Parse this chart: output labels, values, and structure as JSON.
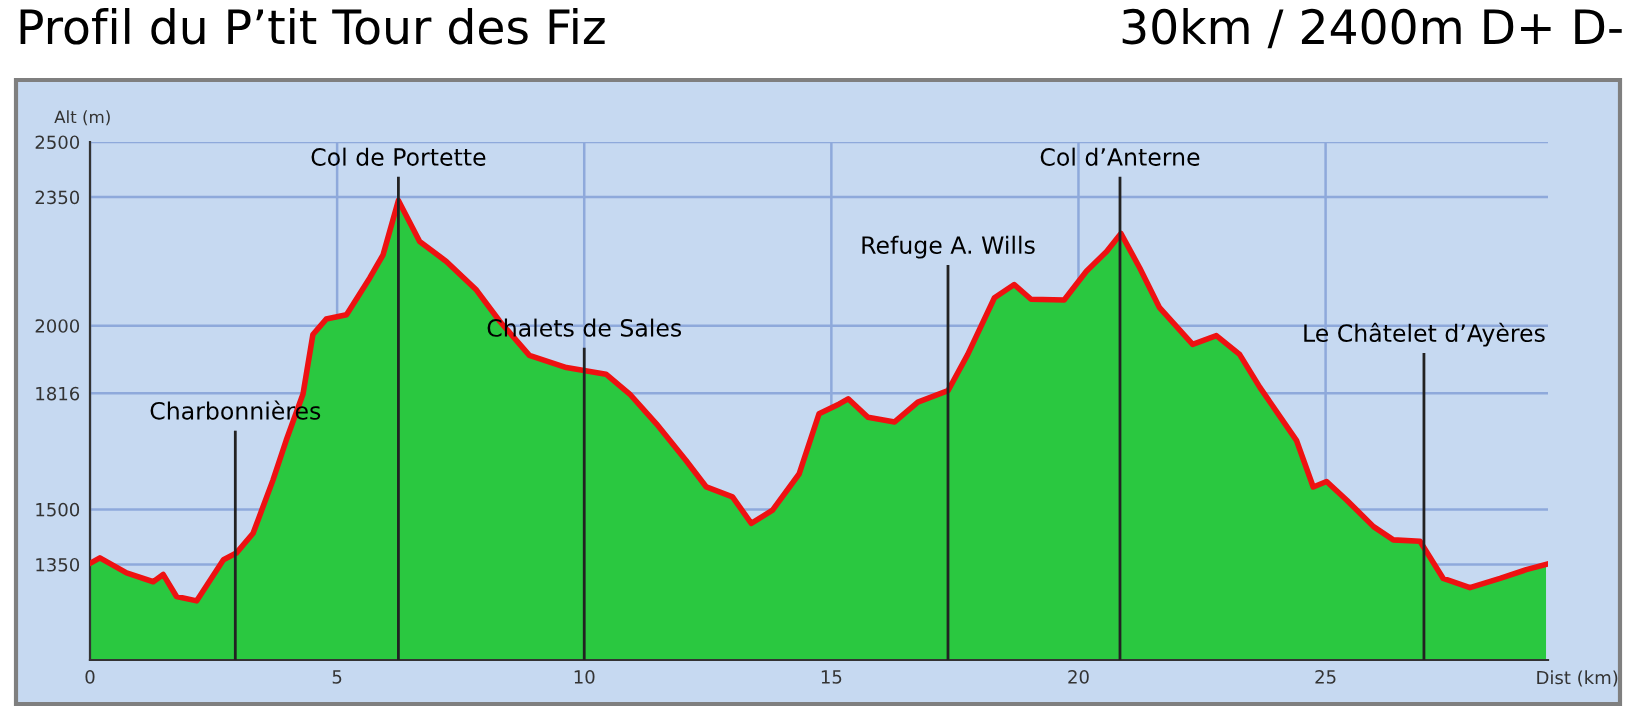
{
  "chart_data": {
    "type": "area",
    "title": "Profil du P’tit Tour des Fiz",
    "subtitle": "30km / 2400m D+ D-",
    "xlabel": "Dist (km)",
    "ylabel": "Alt (m)",
    "x": [
      0,
      0.2,
      0.74,
      1.28,
      1.48,
      1.75,
      2.16,
      2.7,
      2.96,
      3.3,
      3.7,
      3.97,
      4.31,
      4.51,
      4.78,
      5.19,
      5.66,
      5.93,
      6.24,
      6.67,
      7.21,
      7.82,
      8.29,
      8.89,
      9.64,
      10.44,
      10.92,
      11.46,
      12.06,
      12.47,
      13.0,
      13.38,
      13.81,
      14.35,
      14.75,
      15.16,
      15.34,
      15.74,
      16.28,
      16.75,
      17.36,
      17.76,
      18.3,
      18.7,
      19.04,
      19.71,
      20.16,
      20.57,
      20.86,
      21.24,
      21.64,
      22.31,
      22.79,
      23.26,
      23.67,
      24.41,
      24.75,
      25.02,
      25.43,
      25.97,
      26.37,
      26.91,
      27.38,
      27.92,
      28.53,
      29.06,
      29.46
    ],
    "series": [
      {
        "color": "#2ac840",
        "values": [
          1353,
          1368,
          1327,
          1303,
          1323,
          1263,
          1251,
          1363,
          1381,
          1435,
          1579,
          1688,
          1814,
          1976,
          2018,
          2030,
          2130,
          2193,
          2341,
          2229,
          2175,
          2097,
          2012,
          1919,
          1886,
          1868,
          1814,
          1733,
          1633,
          1561,
          1534,
          1462,
          1498,
          1597,
          1760,
          1787,
          1801,
          1751,
          1738,
          1792,
          1823,
          1922,
          2076,
          2112,
          2072,
          2070,
          2148,
          2202,
          2251,
          2157,
          2049,
          1949,
          1973,
          1922,
          1832,
          1688,
          1561,
          1576,
          1525,
          1453,
          1417,
          1413,
          1312,
          1287,
          1312,
          1336,
          1350
        ]
      },
      {
        "type": "line",
        "color": "#ee1111",
        "values": [
          1353,
          1368,
          1327,
          1303,
          1323,
          1263,
          1251,
          1363,
          1381,
          1435,
          1579,
          1688,
          1814,
          1976,
          2018,
          2030,
          2130,
          2193,
          2341,
          2229,
          2175,
          2097,
          2012,
          1919,
          1886,
          1868,
          1814,
          1733,
          1633,
          1561,
          1534,
          1462,
          1498,
          1597,
          1760,
          1787,
          1801,
          1751,
          1738,
          1792,
          1823,
          1922,
          2076,
          2112,
          2072,
          2070,
          2148,
          2202,
          2251,
          2157,
          2049,
          1949,
          1973,
          1922,
          1832,
          1688,
          1561,
          1576,
          1525,
          1453,
          1417,
          1413,
          1312,
          1287,
          1312,
          1336,
          1350
        ]
      }
    ],
    "xlim": [
      0,
      29.5
    ],
    "ylim": [
      1090,
      2500
    ],
    "xticks": [
      0,
      5,
      10,
      15,
      20,
      25
    ],
    "yticks": [
      1350,
      1500,
      1816,
      2000,
      2350,
      2500
    ],
    "grid": true,
    "ref_lines": [
      {
        "axis": "x",
        "value": 2.94,
        "label": "Charbonnières",
        "color": "#222222"
      },
      {
        "axis": "x",
        "value": 6.24,
        "label": "Col de Portette",
        "color": "#222222"
      },
      {
        "axis": "x",
        "value": 10.0,
        "label": "Chalets de Sales",
        "color": "#222222"
      },
      {
        "axis": "x",
        "value": 17.36,
        "label": "Refuge A. Wills",
        "color": "#222222"
      },
      {
        "axis": "x",
        "value": 20.84,
        "label": "Col d’Anterne",
        "color": "#222222"
      },
      {
        "axis": "x",
        "value": 26.99,
        "label": "Le Châtelet d’Ayères",
        "color": "#222222"
      }
    ]
  }
}
